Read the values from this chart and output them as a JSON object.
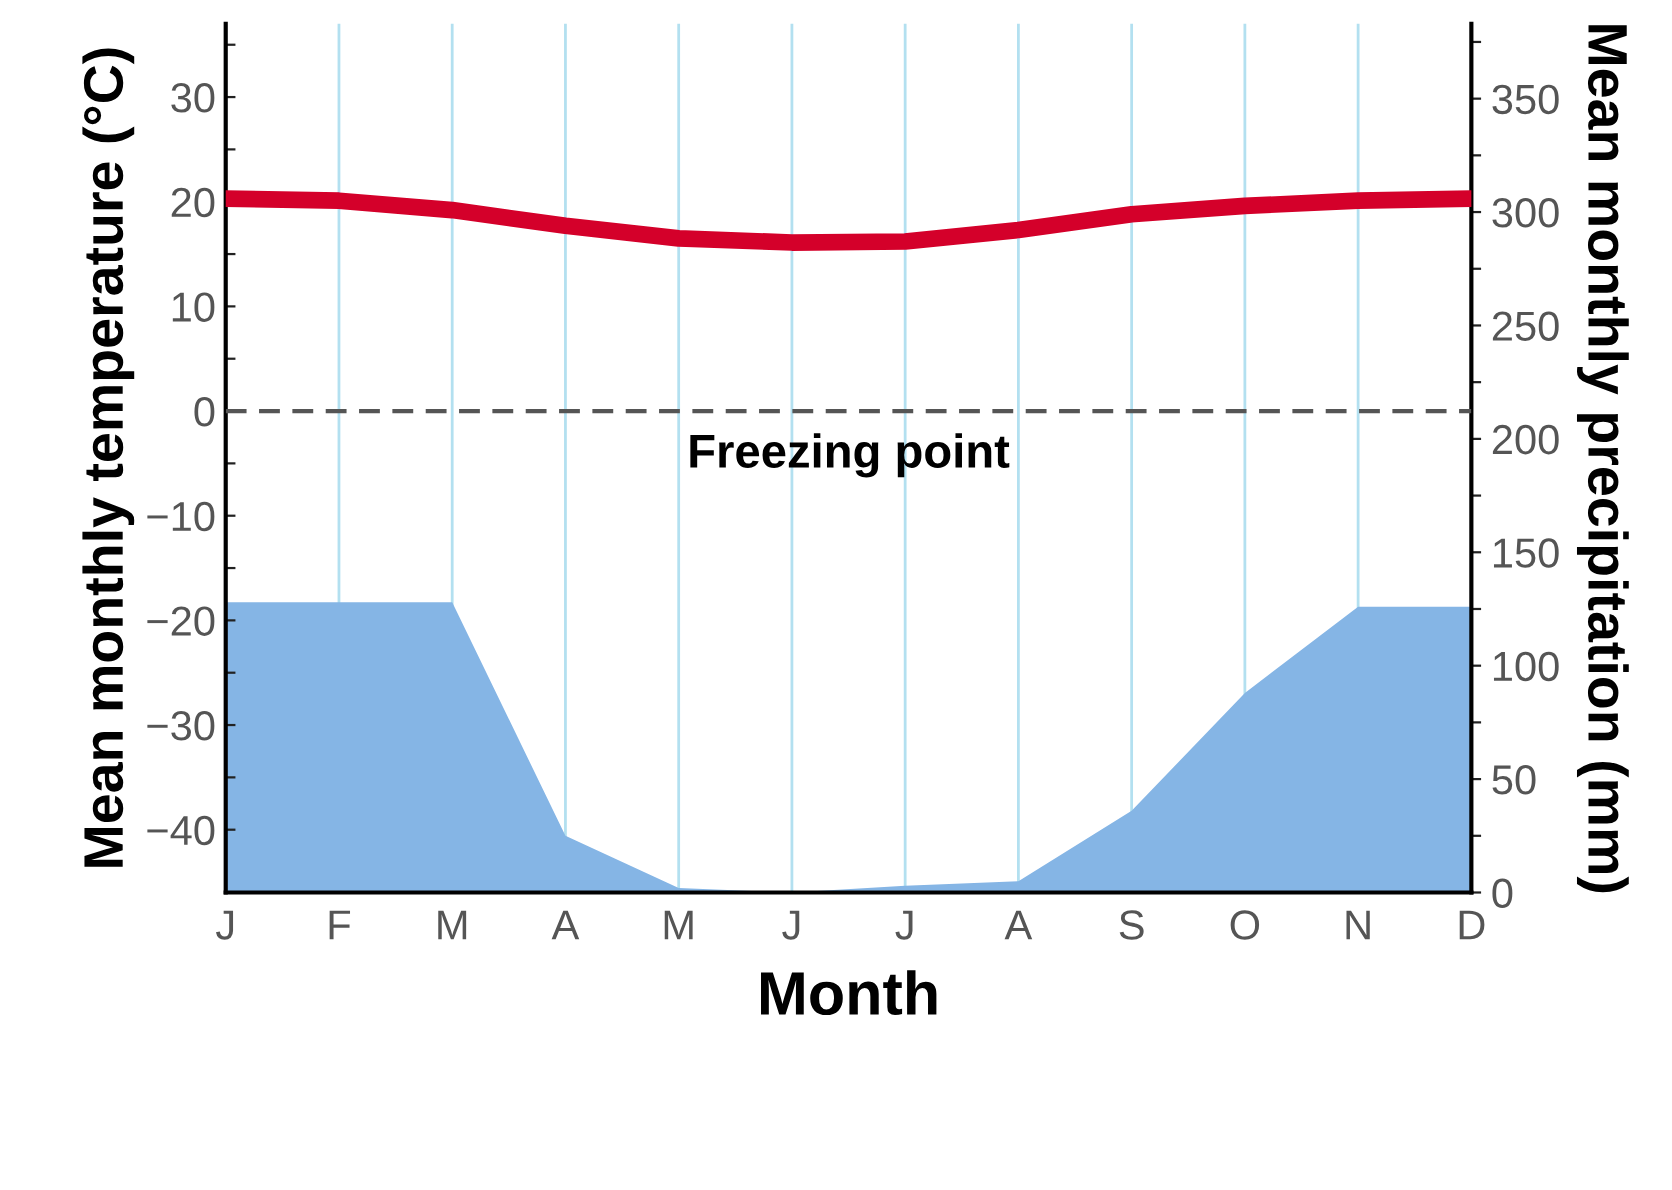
{
  "chart_data": {
    "type": "line",
    "xlabel": "Month",
    "ylabel": "Mean monthly temperature (°C)",
    "y2label": "Mean monthly precipitation (mm)",
    "categories": [
      "J",
      "F",
      "M",
      "A",
      "M",
      "J",
      "J",
      "A",
      "S",
      "O",
      "N",
      "D"
    ],
    "ylim": [
      -46,
      37
    ],
    "yticks": [
      {
        "value": -40,
        "label": "−40"
      },
      {
        "value": -35,
        "label": null
      },
      {
        "value": -30,
        "label": "−30"
      },
      {
        "value": -25,
        "label": null
      },
      {
        "value": -20,
        "label": "−20"
      },
      {
        "value": -15,
        "label": null
      },
      {
        "value": -10,
        "label": "−10"
      },
      {
        "value": -5,
        "label": null
      },
      0,
      {
        "value": 5,
        "label": null
      },
      10,
      {
        "value": 15,
        "label": null
      },
      20,
      {
        "value": 25,
        "label": null
      },
      30,
      {
        "value": 35,
        "label": null
      }
    ],
    "y2lim": [
      0,
      383
    ],
    "y2ticks": [
      0,
      {
        "value": 25,
        "label": null
      },
      50,
      {
        "value": 75,
        "label": null
      },
      100,
      {
        "value": 125,
        "label": null
      },
      150,
      {
        "value": 175,
        "label": null
      },
      200,
      {
        "value": 225,
        "label": null
      },
      250,
      {
        "value": 275,
        "label": null
      },
      300,
      {
        "value": 325,
        "label": null
      },
      350,
      {
        "value": 375,
        "label": null
      }
    ],
    "grid": "x",
    "series": [
      {
        "type": "area",
        "axis": "y2",
        "color": "#85b5e5",
        "values": [
          128,
          128,
          128,
          25,
          2,
          0,
          3,
          5,
          36,
          88,
          126,
          126
        ]
      },
      {
        "axis": "y",
        "color": "#d4002a",
        "values": [
          20.3,
          20.1,
          19.2,
          17.7,
          16.5,
          16.1,
          16.2,
          17.3,
          18.8,
          19.6,
          20.1,
          20.3
        ]
      }
    ],
    "ref_lines": [
      {
        "axis": "y",
        "value": 0,
        "label": "Freezing point",
        "color": "#555555",
        "line_style": "dashed"
      }
    ]
  }
}
